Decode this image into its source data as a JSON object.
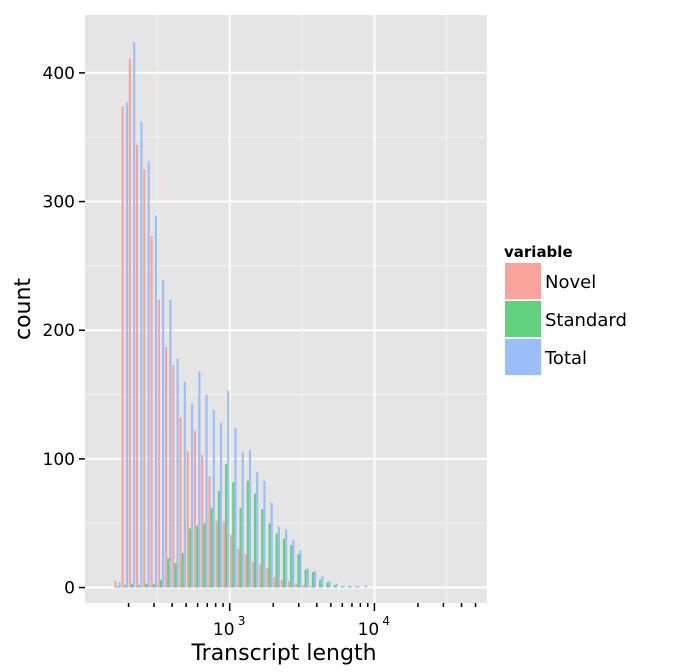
{
  "chart_data": {
    "type": "bar",
    "xlabel": "Transcript length",
    "ylabel": "count",
    "x_scale": "log10",
    "xlim": [
      100,
      60000
    ],
    "ylim": [
      -12,
      445
    ],
    "y_ticks": [
      0,
      100,
      200,
      300,
      400
    ],
    "y_tick_labels": [
      "0",
      "100",
      "200",
      "300",
      "400"
    ],
    "x_major_ticks": [
      1000,
      10000
    ],
    "x_tick_labels": [
      {
        "base": "10",
        "exp": "3"
      },
      {
        "base": "10",
        "exp": "4"
      }
    ],
    "x_minor_ticks": [
      200,
      300,
      400,
      500,
      600,
      700,
      800,
      900,
      2000,
      3000,
      4000,
      5000,
      6000,
      7000,
      8000,
      9000,
      20000,
      30000,
      40000,
      50000
    ],
    "grid": true,
    "legend": {
      "title": "variable",
      "position": "right",
      "entries": [
        "Novel",
        "Standard",
        "Total"
      ]
    },
    "bin_log10_start": 2.2,
    "bin_log10_width": 0.05,
    "series": [
      {
        "name": "Novel",
        "color": "#F8A39C",
        "values": [
          5,
          374,
          411,
          344,
          325,
          273,
          224,
          187,
          173,
          132,
          106,
          122,
          103,
          86,
          52,
          51,
          41,
          30,
          26,
          20,
          18,
          15,
          8,
          6,
          5,
          3,
          2,
          1,
          0,
          0,
          0,
          0,
          0,
          0,
          0,
          0
        ]
      },
      {
        "name": "Standard",
        "color": "#61D180",
        "values": [
          1,
          2,
          3,
          2,
          3,
          3,
          6,
          23,
          19,
          27,
          46,
          48,
          50,
          62,
          75,
          96,
          82,
          62,
          83,
          73,
          61,
          50,
          42,
          38,
          33,
          26,
          14,
          12,
          6,
          4,
          2,
          1,
          1,
          1,
          0,
          0
        ]
      },
      {
        "name": "Total",
        "color": "#9BBEF8",
        "values": [
          4,
          377,
          424,
          362,
          331,
          289,
          239,
          224,
          178,
          160,
          143,
          168,
          150,
          138,
          128,
          153,
          124,
          105,
          107,
          90,
          83,
          66,
          47,
          45,
          37,
          29,
          15,
          13,
          9,
          5,
          3,
          1,
          1,
          1,
          2,
          0
        ]
      }
    ]
  }
}
